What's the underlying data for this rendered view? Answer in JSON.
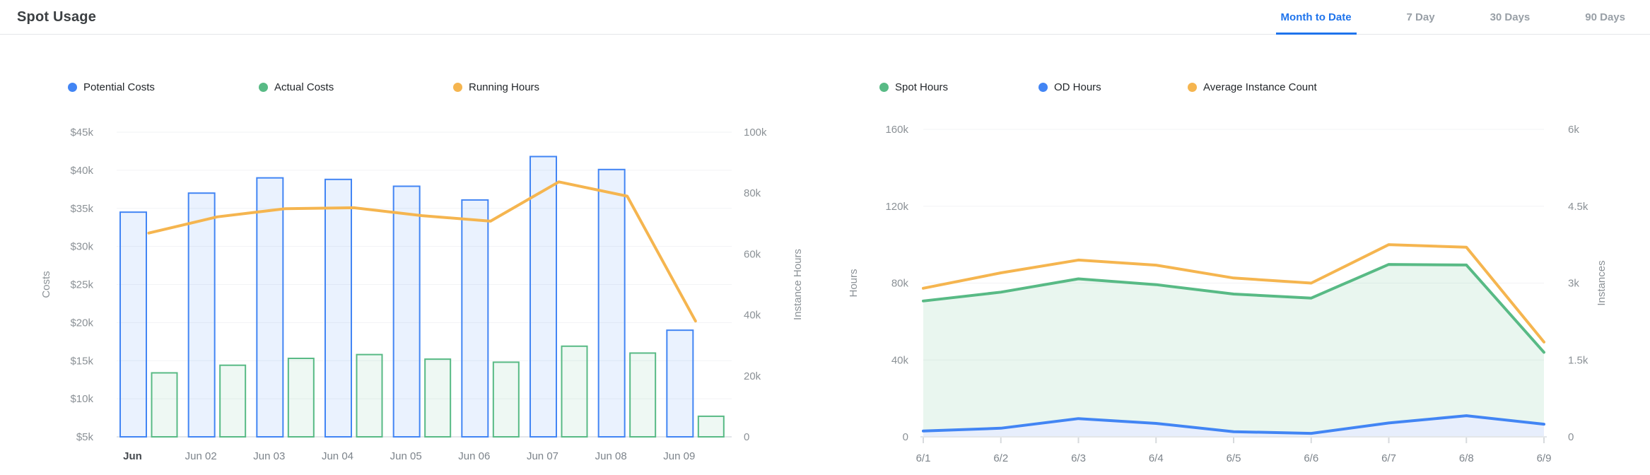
{
  "header": {
    "title": "Spot Usage",
    "tabs": [
      {
        "label": "Month to Date",
        "active": true
      },
      {
        "label": "7 Day",
        "active": false
      },
      {
        "label": "30 Days",
        "active": false
      },
      {
        "label": "90 Days",
        "active": false
      }
    ]
  },
  "colors": {
    "blue": "#4285f4",
    "green": "#58ba85",
    "orange": "#f5b54f",
    "active_tab": "#1f74ec",
    "bar_blue_fill": "rgba(66,133,244,0.11)",
    "bar_green_fill": "rgba(88,186,133,0.10)",
    "area_green_fill": "rgba(87,186,133,0.13)",
    "area_blue_fill": "#e7eefc"
  },
  "chart_data": [
    {
      "type": "bar",
      "title": "",
      "categories": [
        "Jun",
        "Jun 02",
        "Jun 03",
        "Jun 04",
        "Jun 05",
        "Jun 06",
        "Jun 07",
        "Jun 08",
        "Jun 09"
      ],
      "series": [
        {
          "name": "Potential Costs",
          "type": "bar",
          "axis": "left",
          "color": "blue",
          "values": [
            34.5,
            37.0,
            39.0,
            38.8,
            37.9,
            36.1,
            41.8,
            40.1,
            19.0
          ],
          "unit": "$k"
        },
        {
          "name": "Actual Costs",
          "type": "bar",
          "axis": "left",
          "color": "green",
          "values": [
            13.4,
            14.4,
            15.3,
            15.8,
            15.2,
            14.8,
            16.9,
            16.0,
            7.7
          ],
          "unit": "$k"
        },
        {
          "name": "Running Hours",
          "type": "line",
          "axis": "right",
          "color": "orange",
          "values": [
            66.9,
            72.2,
            74.9,
            75.2,
            72.6,
            70.8,
            83.7,
            79.0,
            38.0
          ],
          "unit": "k hours"
        }
      ],
      "y_left": {
        "label": "Costs",
        "min": 5,
        "max": 45,
        "ticks": [
          "$45k",
          "$40k",
          "$35k",
          "$30k",
          "$25k",
          "$20k",
          "$15k",
          "$10k",
          "$5k"
        ]
      },
      "y_right": {
        "label": "Instance Hours",
        "min": 0,
        "max": 100,
        "ticks": [
          "100k",
          "80k",
          "60k",
          "40k",
          "20k",
          "0"
        ]
      },
      "grid": true,
      "legend_position": "top"
    },
    {
      "type": "area",
      "title": "",
      "categories": [
        "6/1",
        "6/2",
        "6/3",
        "6/4",
        "6/5",
        "6/6",
        "6/7",
        "6/8",
        "6/9"
      ],
      "series": [
        {
          "name": "Spot Hours",
          "type": "area",
          "axis": "left",
          "color": "green",
          "values": [
            70.7,
            75.3,
            82.2,
            79.2,
            74.3,
            72.2,
            89.7,
            89.4,
            44.0
          ],
          "unit": "k hours"
        },
        {
          "name": "OD Hours",
          "type": "area",
          "axis": "left",
          "color": "blue",
          "values": [
            3.0,
            4.5,
            9.5,
            7.0,
            2.7,
            1.8,
            7.2,
            11.0,
            6.6
          ],
          "unit": "k hours"
        },
        {
          "name": "Average Instance Count",
          "type": "line",
          "axis": "right",
          "color": "orange",
          "values": [
            2.9,
            3.2,
            3.45,
            3.35,
            3.1,
            3.0,
            3.75,
            3.7,
            1.85
          ],
          "unit": "k instances"
        }
      ],
      "y_left": {
        "label": "Hours",
        "min": 0,
        "max": 160,
        "ticks": [
          "160k",
          "120k",
          "80k",
          "40k",
          "0"
        ]
      },
      "y_right": {
        "label": "Instances",
        "min": 0,
        "max": 6,
        "ticks": [
          "6k",
          "4.5k",
          "3k",
          "1.5k",
          "0"
        ]
      },
      "grid": true,
      "legend_position": "top"
    }
  ],
  "left_panel_legend": [
    {
      "label": "Potential Costs",
      "color": "blue"
    },
    {
      "label": "Actual Costs",
      "color": "green"
    },
    {
      "label": "Running Hours",
      "color": "orange"
    }
  ],
  "right_panel_legend": [
    {
      "label": "Spot Hours",
      "color": "green"
    },
    {
      "label": "OD Hours",
      "color": "blue"
    },
    {
      "label": "Average Instance Count",
      "color": "orange"
    }
  ]
}
